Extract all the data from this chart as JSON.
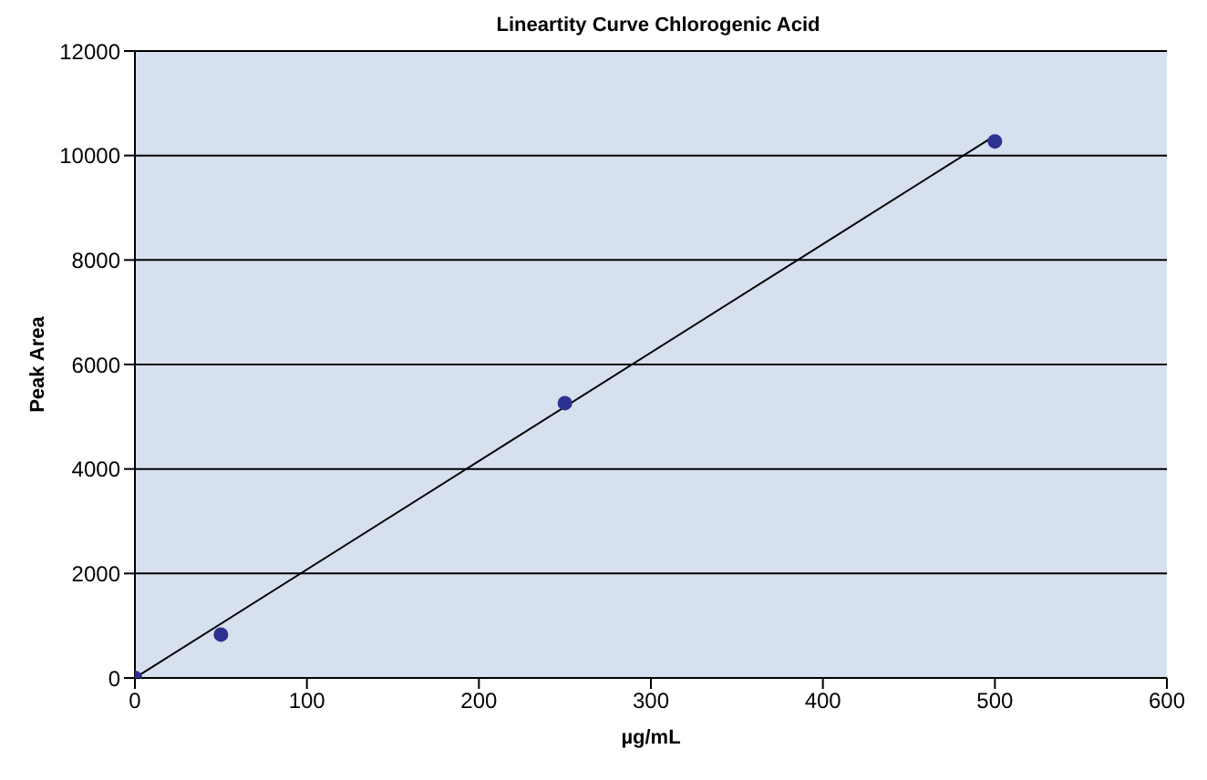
{
  "chart_data": {
    "type": "scatter",
    "title": "Lineartity Curve Chlorogenic Acid",
    "xlabel": "µg/mL",
    "ylabel": "Peak Area",
    "series": [
      {
        "type": "scatter",
        "color": "#2e3192",
        "x": [
          0,
          50,
          250,
          500
        ],
        "values": [
          0,
          830,
          5260,
          10270
        ],
        "marker": "circle"
      },
      {
        "type": "line",
        "color": "#000000",
        "x": [
          0,
          500
        ],
        "values": [
          0,
          10380
        ],
        "marker": "none",
        "line_style": "solid"
      }
    ],
    "xlim": [
      0,
      600
    ],
    "xticks": [
      0,
      100,
      200,
      300,
      400,
      500,
      600
    ],
    "ylim": [
      0,
      12000
    ],
    "yticks": [
      0,
      2000,
      4000,
      6000,
      8000,
      10000,
      12000
    ],
    "grid": "y"
  }
}
